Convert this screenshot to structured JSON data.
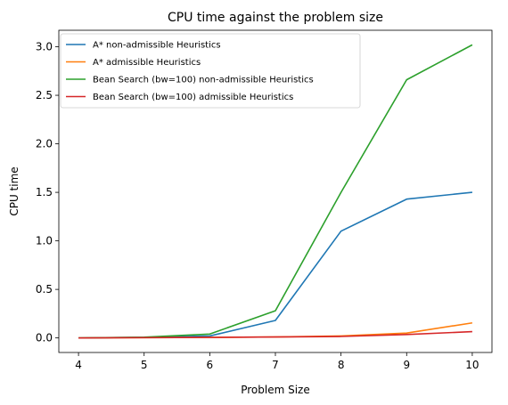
{
  "chart_data": {
    "type": "line",
    "title": "CPU time against the problem size",
    "xlabel": "Problem Size",
    "ylabel": "CPU time",
    "x": [
      4,
      5,
      6,
      7,
      8,
      9,
      10
    ],
    "xlim": [
      3.7,
      10.3
    ],
    "ylim": [
      -0.15,
      3.17
    ],
    "xticks": [
      "4",
      "5",
      "6",
      "7",
      "8",
      "9",
      "10"
    ],
    "yticks": [
      "0.0",
      "0.5",
      "1.0",
      "1.5",
      "2.0",
      "2.5",
      "3.0"
    ],
    "grid": false,
    "legend_position": "top-left",
    "series": [
      {
        "name": "A* non-admissible Heuristics",
        "color": "#1f77b4",
        "values": [
          0.0,
          0.005,
          0.02,
          0.18,
          1.1,
          1.43,
          1.5
        ]
      },
      {
        "name": "A* admissible Heuristics",
        "color": "#ff7f0e",
        "values": [
          0.0,
          0.003,
          0.005,
          0.01,
          0.02,
          0.05,
          0.155
        ]
      },
      {
        "name": "Bean Search (bw=100) non-admissible Heuristics",
        "color": "#2ca02c",
        "values": [
          0.0,
          0.008,
          0.04,
          0.28,
          1.5,
          2.66,
          3.02
        ]
      },
      {
        "name": "Bean Search (bw=100) admissible Heuristics",
        "color": "#d62728",
        "values": [
          0.0,
          0.003,
          0.005,
          0.01,
          0.015,
          0.035,
          0.065
        ]
      }
    ]
  }
}
